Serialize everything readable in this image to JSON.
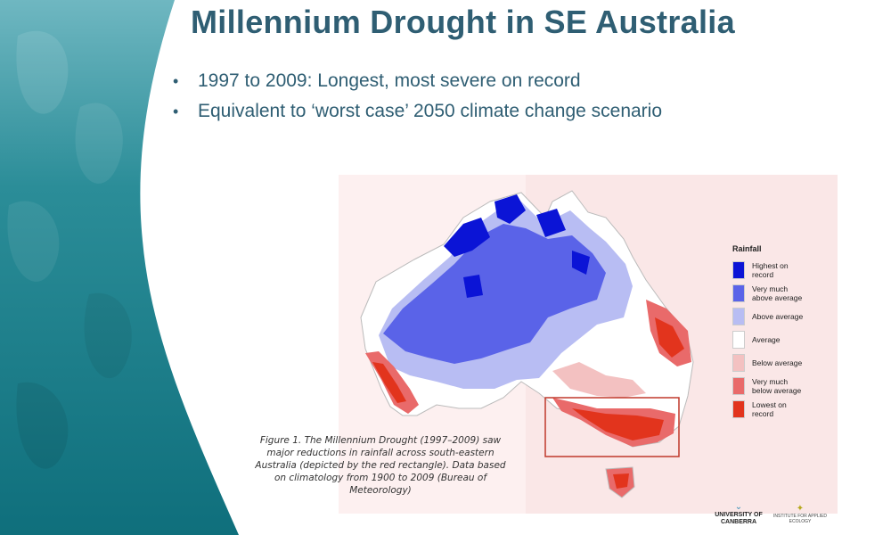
{
  "slide": {
    "title": "Millennium Drought in SE Australia",
    "bullets": [
      "1997 to 2009: Longest, most severe on record",
      "Equivalent to ‘worst case’ 2050 climate change scenario"
    ]
  },
  "figure": {
    "caption": "Figure 1. The Millennium Drought (1997–2009) saw major reductions in rainfall across south-eastern Australia (depicted by the red rectangle). Data based on climatology from 1900 to 2009 (Bureau of Meteorology)",
    "legend": {
      "title": "Rainfall",
      "items": [
        {
          "label": "Highest on\nrecord",
          "color": "#0b14d6"
        },
        {
          "label": "Very much\nabove average",
          "color": "#5a63e8"
        },
        {
          "label": "Above average",
          "color": "#b8bdf3"
        },
        {
          "label": "Average",
          "color": "#ffffff"
        },
        {
          "label": "Below average",
          "color": "#f3c1c1"
        },
        {
          "label": "Very much\nbelow average",
          "color": "#e96a6a"
        },
        {
          "label": "Lowest on\nrecord",
          "color": "#e2341d"
        }
      ]
    }
  },
  "logos": {
    "university": "UNIVERSITY OF CANBERRA",
    "institute": "INSTITUTE FOR APPLIED ECOLOGY"
  },
  "colors": {
    "teal": "#1f7f8c",
    "title": "#2f5e73",
    "drought_rect": "#c0392b"
  }
}
